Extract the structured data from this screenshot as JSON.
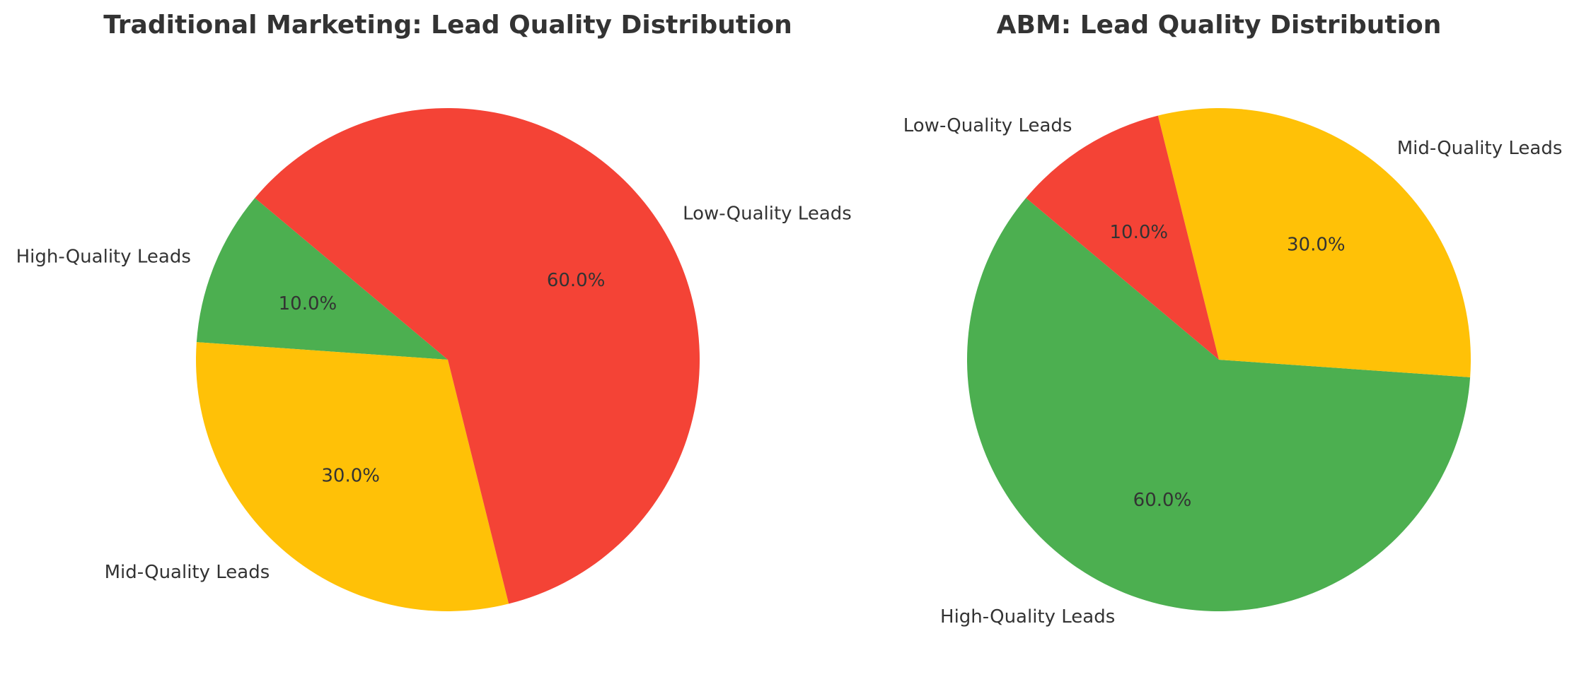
{
  "chart_data": [
    {
      "type": "pie",
      "title": "Traditional Marketing: Lead Quality Distribution",
      "categories": [
        "High-Quality Leads",
        "Mid-Quality Leads",
        "Low-Quality Leads"
      ],
      "values": [
        10,
        30,
        60
      ],
      "labels_pct": [
        "10.0%",
        "30.0%",
        "60.0%"
      ],
      "colors": [
        "#4CAF50",
        "#FFC107",
        "#F44336"
      ],
      "startangle": 140
    },
    {
      "type": "pie",
      "title": "ABM: Lead Quality Distribution",
      "categories": [
        "High-Quality Leads",
        "Mid-Quality Leads",
        "Low-Quality Leads"
      ],
      "values": [
        60,
        30,
        10
      ],
      "labels_pct": [
        "60.0%",
        "30.0%",
        "10.0%"
      ],
      "colors": [
        "#4CAF50",
        "#FFC107",
        "#F44336"
      ],
      "startangle": 140
    }
  ]
}
